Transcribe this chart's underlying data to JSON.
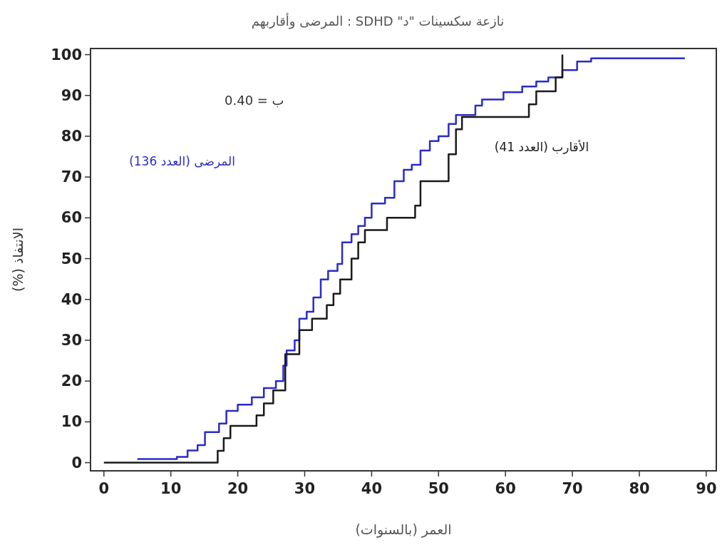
{
  "chart_data": {
    "type": "step",
    "title": "نازعة سكسينات \"د\" SDHD : المرضى وأقاربهم",
    "xlabel": "العمر (بالسنوات)",
    "ylabel": "الانتفاذ (%)",
    "annotations": [
      "ب = 0.40"
    ],
    "xlim": [
      -2,
      91.5
    ],
    "ylim": [
      -2,
      101.5
    ],
    "xticks": [
      0,
      10,
      20,
      30,
      40,
      50,
      60,
      70,
      80,
      90
    ],
    "yticks": [
      0,
      10,
      20,
      30,
      40,
      50,
      60,
      70,
      80,
      90,
      100
    ],
    "grid": false,
    "legend": false,
    "series": [
      {
        "name": "المرضى (العدد 136)",
        "color": "#2b2bc8",
        "x": [
          5,
          10.9,
          12.5,
          14,
          15.1,
          17.2,
          18.3,
          20,
          22.1,
          23.9,
          25.7,
          26.8,
          27.3,
          28.5,
          29.2,
          30.3,
          31.3,
          32.4,
          33.5,
          34.9,
          35.6,
          37,
          38,
          39,
          40,
          42,
          43.4,
          44.8,
          46,
          47.3,
          48.7,
          50,
          51.5,
          52.6,
          55.5,
          56.5,
          59.7,
          62.5,
          64.6,
          66.4,
          68.5,
          70.7,
          72.8,
          86.8
        ],
        "values": [
          0.9,
          1.4,
          3,
          4.3,
          7.5,
          9.6,
          12.7,
          14.2,
          16,
          18.3,
          20,
          23.8,
          27.5,
          30,
          35.3,
          37,
          40.5,
          44.9,
          47,
          48.7,
          54,
          56,
          58,
          60,
          63.5,
          64.9,
          69,
          71.8,
          73,
          76.5,
          78.8,
          80,
          83,
          85.2,
          87.5,
          89,
          90.8,
          92.2,
          93.4,
          94.4,
          96.2,
          98.3,
          99.1,
          99.1
        ]
      },
      {
        "name": "الأقارب (العدد 41)",
        "color": "#1a1a1a",
        "x": [
          0,
          17,
          17.9,
          18.9,
          22.8,
          23.9,
          25.3,
          27.1,
          29.2,
          31.1,
          33.3,
          34.3,
          35.3,
          37,
          38,
          39,
          42.3,
          46.5,
          47.3,
          51.5,
          52.6,
          53.5,
          63.5,
          64.6,
          67.5,
          68.5
        ],
        "values": [
          0,
          2.9,
          6,
          9,
          11.6,
          14.5,
          17.7,
          26.6,
          32.5,
          35.3,
          38.6,
          41.4,
          44.9,
          50,
          54,
          57,
          60,
          63,
          69,
          75.6,
          81.7,
          84.7,
          87.8,
          91,
          94.4,
          100
        ]
      }
    ]
  }
}
